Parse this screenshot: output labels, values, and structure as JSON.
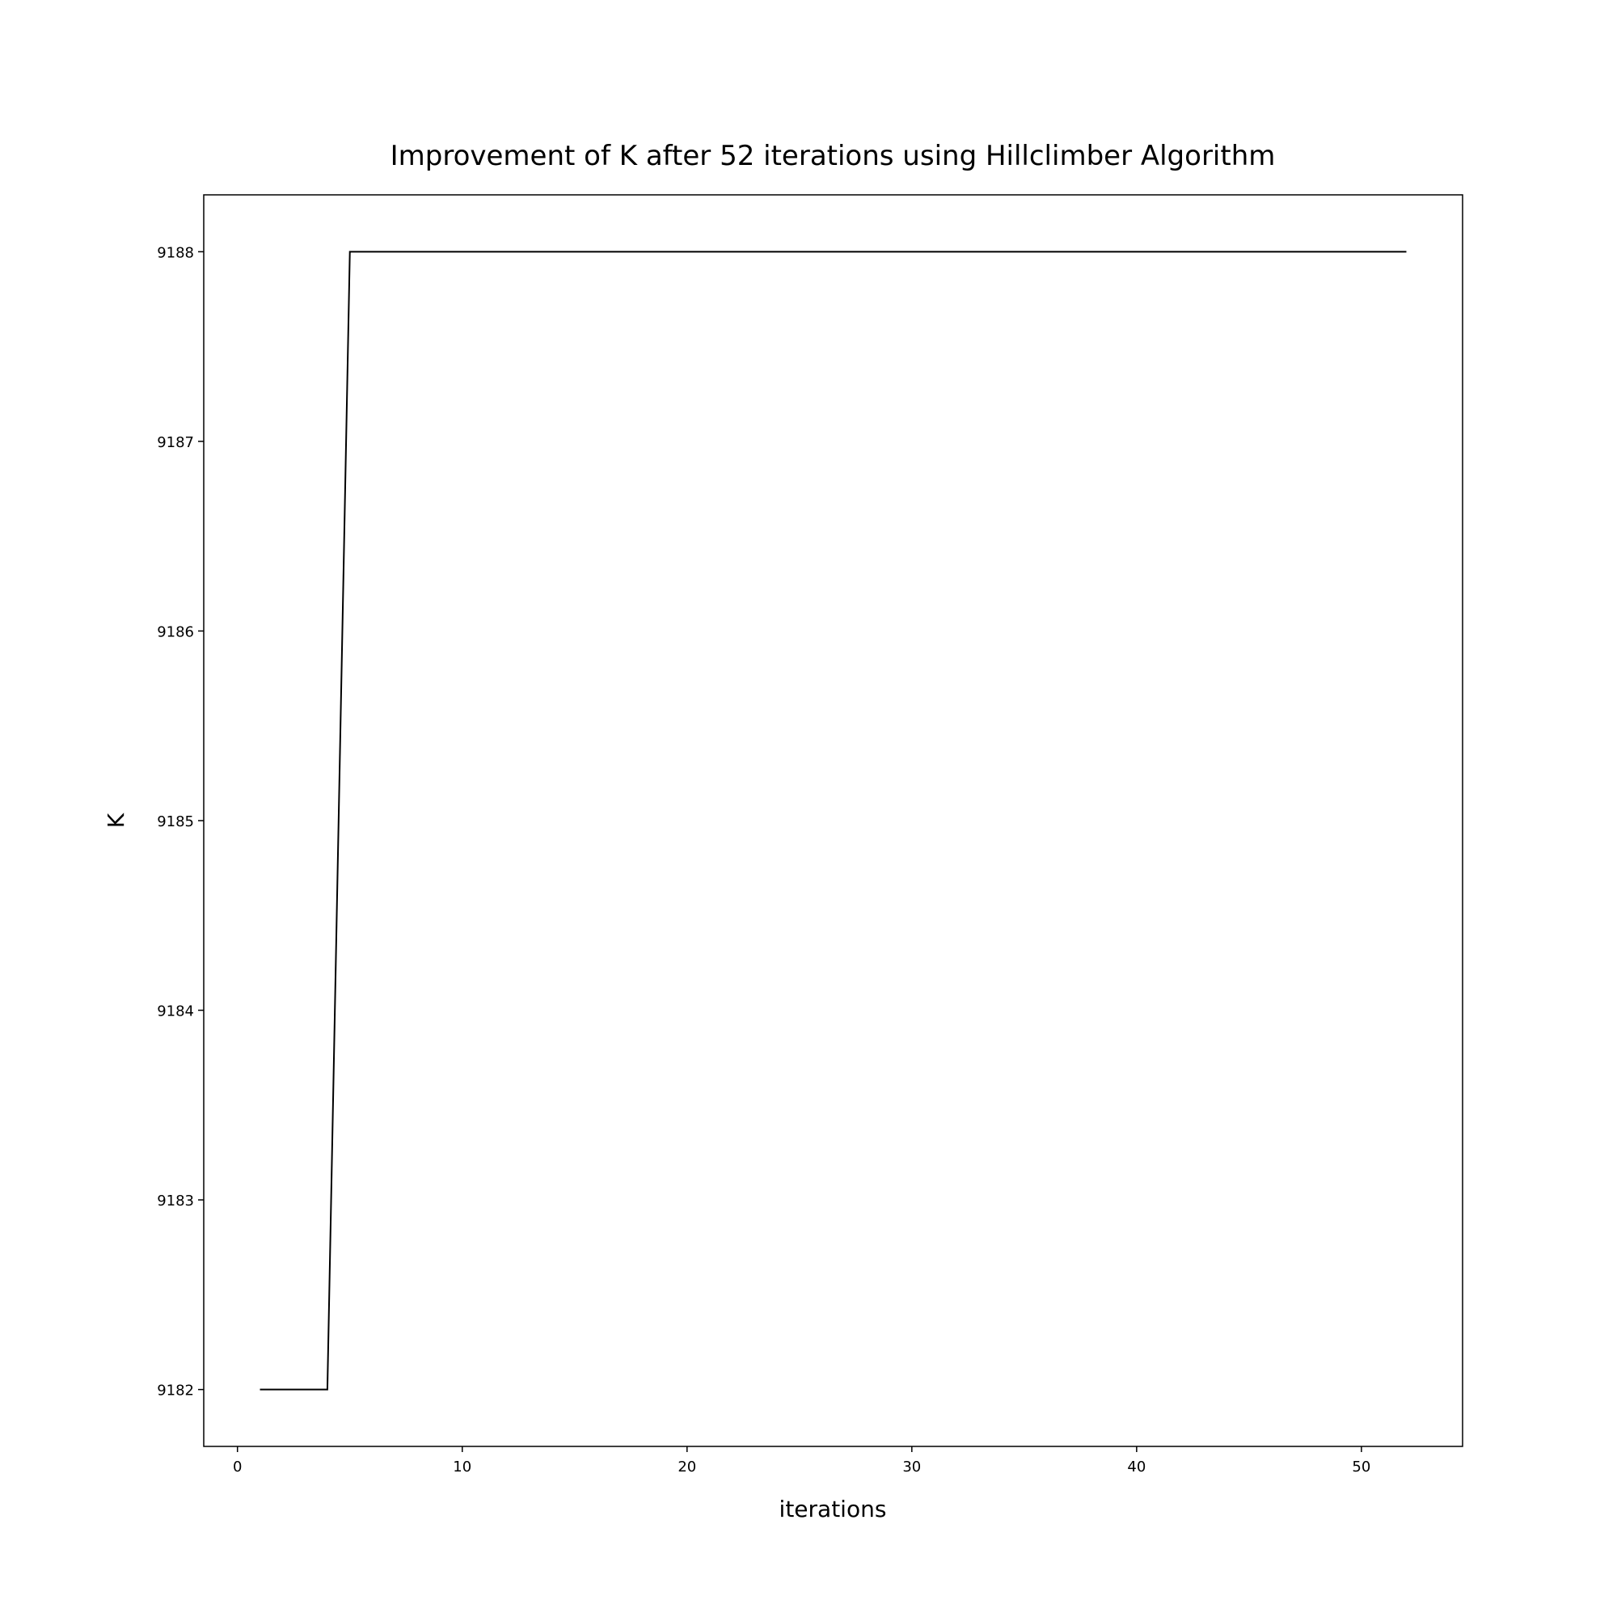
{
  "chart_data": {
    "type": "line",
    "title": "Improvement of K after 52 iterations using Hillclimber Algorithm",
    "xlabel": "iterations",
    "ylabel": "K",
    "xlim": [
      -1.5,
      54.5
    ],
    "ylim": [
      9181.7,
      9188.3
    ],
    "xticks": [
      0,
      10,
      20,
      30,
      40,
      50
    ],
    "xtick_labels": [
      "0",
      "10",
      "20",
      "30",
      "40",
      "50"
    ],
    "yticks": [
      9182,
      9183,
      9184,
      9185,
      9186,
      9187,
      9188
    ],
    "ytick_labels": [
      "9182",
      "9183",
      "9184",
      "9185",
      "9186",
      "9187",
      "9188"
    ],
    "grid": false,
    "legend": "none",
    "series": [
      {
        "color": "#000000",
        "x": [
          1,
          2,
          3,
          4,
          5,
          6,
          7,
          8,
          9,
          10,
          11,
          12,
          13,
          14,
          15,
          16,
          17,
          18,
          19,
          20,
          21,
          22,
          23,
          24,
          25,
          26,
          27,
          28,
          29,
          30,
          31,
          32,
          33,
          34,
          35,
          36,
          37,
          38,
          39,
          40,
          41,
          42,
          43,
          44,
          45,
          46,
          47,
          48,
          49,
          50,
          51,
          52
        ],
        "y": [
          9182,
          9182,
          9182,
          9182,
          9188,
          9188,
          9188,
          9188,
          9188,
          9188,
          9188,
          9188,
          9188,
          9188,
          9188,
          9188,
          9188,
          9188,
          9188,
          9188,
          9188,
          9188,
          9188,
          9188,
          9188,
          9188,
          9188,
          9188,
          9188,
          9188,
          9188,
          9188,
          9188,
          9188,
          9188,
          9188,
          9188,
          9188,
          9188,
          9188,
          9188,
          9188,
          9188,
          9188,
          9188,
          9188,
          9188,
          9188,
          9188,
          9188,
          9188,
          9188
        ]
      }
    ]
  }
}
